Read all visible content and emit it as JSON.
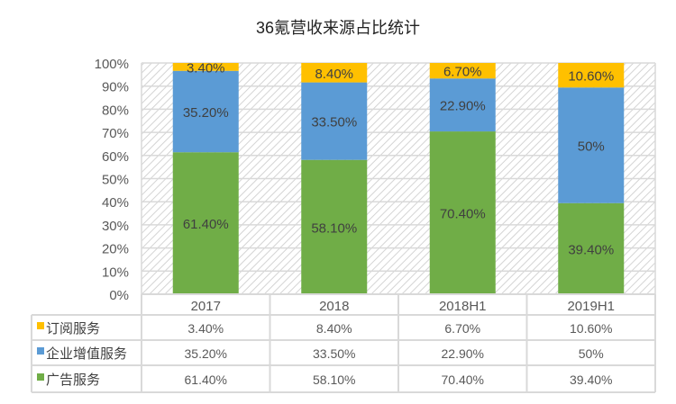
{
  "chart_data": {
    "type": "bar",
    "stacked": true,
    "title": "36氪营收来源占比统计",
    "categories": [
      "2017",
      "2018",
      "2018H1",
      "2019H1"
    ],
    "series": [
      {
        "name": "广告服务",
        "color": "#70ad47",
        "values": [
          61.4,
          58.1,
          70.4,
          39.4
        ],
        "labels": [
          "61.40%",
          "58.10%",
          "70.40%",
          "39.40%"
        ]
      },
      {
        "name": "企业增值服务",
        "color": "#5b9bd5",
        "values": [
          35.2,
          33.5,
          22.9,
          50
        ],
        "labels": [
          "35.20%",
          "33.50%",
          "22.90%",
          "50%"
        ]
      },
      {
        "name": "订阅服务",
        "color": "#ffc000",
        "values": [
          3.4,
          8.4,
          6.7,
          10.6
        ],
        "labels": [
          "3.40%",
          "8.40%",
          "6.70%",
          "10.60%"
        ]
      }
    ],
    "table_order": [
      2,
      1,
      0
    ],
    "ylim": [
      0,
      100
    ],
    "yticks": [
      "0%",
      "10%",
      "20%",
      "30%",
      "40%",
      "50%",
      "60%",
      "70%",
      "80%",
      "90%",
      "100%"
    ],
    "grid": true,
    "legend": "data-table"
  }
}
